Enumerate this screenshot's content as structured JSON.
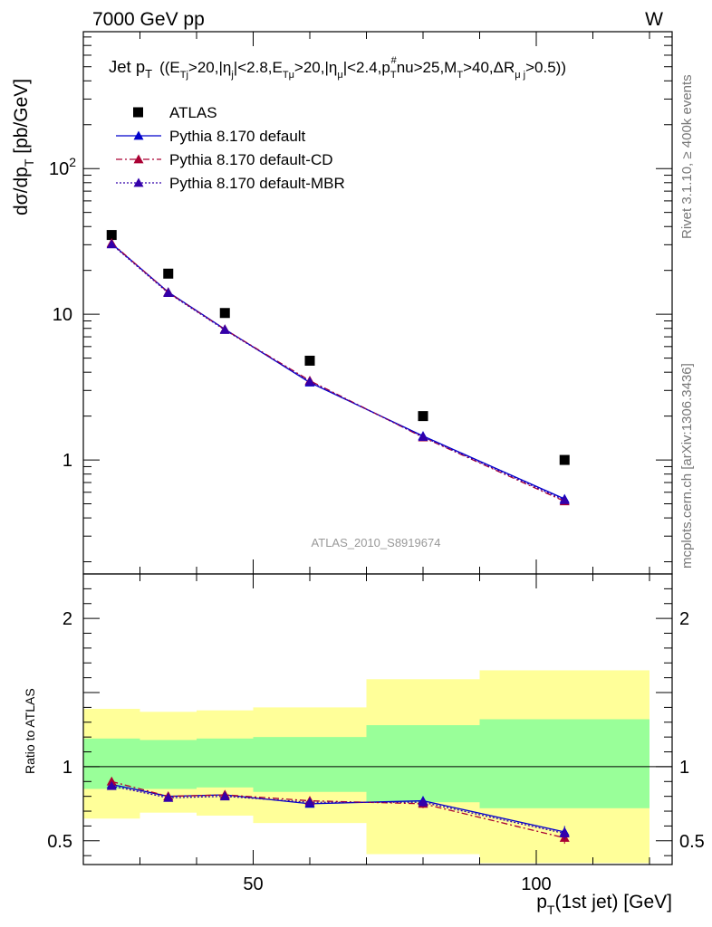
{
  "header": {
    "left": "7000 GeV pp",
    "right": "W"
  },
  "side_labels": {
    "rivet": "Rivet 3.1.10, ≥ 400k events",
    "mcplots": "mcplots.cern.ch [arXiv:1306.3436]"
  },
  "watermark": "ATLAS_2010_S8919674",
  "title_parts": {
    "main": "Jet p",
    "main_sub": "T",
    "cuts_a": "((E",
    "cuts_a_sub": "Tj",
    "cuts_b": ">20,|η",
    "cuts_b_sub": "j",
    "cuts_c": "|<2.8,E",
    "cuts_c_sub": "Tμ",
    "cuts_d": ">20,|η",
    "cuts_d_sub": "μ",
    "cuts_e": "|<2.4,p",
    "cuts_e_sub": "T",
    "cuts_e_sup": "#",
    "cuts_f": "nu>25,M",
    "cuts_f_sub": "T",
    "cuts_g": ">40,ΔR",
    "cuts_g_sub": "μ j",
    "cuts_h": ">0.5))"
  },
  "axis_labels": {
    "y_main": "dσ/dp",
    "y_main_sub": "T",
    "y_main_unit": " [pb/GeV]",
    "y_ratio": "Ratio to ATLAS",
    "x": "p",
    "x_sub": "T",
    "x_rest": "(1st jet) [GeV]"
  },
  "colors": {
    "data": "#000000",
    "default": "#0000cc",
    "cd": "#aa0033",
    "mbr": "#3300aa",
    "band_inner": "#99ff99",
    "band_outer": "#ffff99"
  },
  "chart_data": {
    "type": "line",
    "x_scale": "linear",
    "xlim": [
      20,
      124
    ],
    "main": {
      "y_scale": "log",
      "ylim": [
        0.165,
        870
      ],
      "yticks": [
        {
          "value": 1,
          "label": "1"
        },
        {
          "value": 10,
          "label": "10"
        },
        {
          "value": 100,
          "label": "10",
          "sup": "2"
        }
      ]
    },
    "ratio": {
      "y_scale": "linear",
      "ylim": [
        0.34,
        2.3
      ],
      "yticks": [
        {
          "value": 0.5,
          "label": "0.5"
        },
        {
          "value": 1,
          "label": "1"
        },
        {
          "value": 2,
          "label": "2"
        }
      ]
    },
    "xticks": [
      {
        "value": 50,
        "label": "50"
      },
      {
        "value": 100,
        "label": "100"
      }
    ],
    "bins": [
      {
        "lo": 20,
        "hi": 30,
        "x": 25
      },
      {
        "lo": 30,
        "hi": 40,
        "x": 35
      },
      {
        "lo": 40,
        "hi": 50,
        "x": 45
      },
      {
        "lo": 50,
        "hi": 70,
        "x": 60
      },
      {
        "lo": 70,
        "hi": 90,
        "x": 80
      },
      {
        "lo": 90,
        "hi": 120,
        "x": 105
      }
    ],
    "series": [
      {
        "name": "ATLAS",
        "marker": "square",
        "line": "none",
        "values": [
          35,
          19,
          10.2,
          4.8,
          2.0,
          1.0
        ]
      },
      {
        "name": "Pythia 8.170 default",
        "marker": "triangle",
        "line": "solid",
        "values": [
          30.5,
          14.2,
          7.9,
          3.4,
          1.46,
          0.54
        ],
        "ratio": [
          0.88,
          0.8,
          0.81,
          0.75,
          0.77,
          0.56
        ],
        "ratio_err": [
          0.015,
          0.01,
          0.01,
          0.015,
          0.03,
          0.04
        ]
      },
      {
        "name": "Pythia 8.170 default-CD",
        "marker": "triangle",
        "line": "dashdot",
        "values": [
          30.8,
          14.1,
          7.85,
          3.5,
          1.43,
          0.52
        ],
        "ratio": [
          0.9,
          0.8,
          0.81,
          0.77,
          0.75,
          0.52
        ],
        "ratio_err": [
          0.015,
          0.01,
          0.01,
          0.015,
          0.03,
          0.04
        ]
      },
      {
        "name": "Pythia 8.170 default-MBR",
        "marker": "triangle",
        "line": "dotted",
        "values": [
          30.2,
          14.0,
          7.8,
          3.45,
          1.44,
          0.53
        ],
        "ratio": [
          0.87,
          0.79,
          0.8,
          0.76,
          0.76,
          0.55
        ],
        "ratio_err": [
          0.015,
          0.01,
          0.01,
          0.015,
          0.03,
          0.04
        ]
      }
    ],
    "bands": {
      "inner": [
        {
          "lo": 0.85,
          "hi": 1.19
        },
        {
          "lo": 0.85,
          "hi": 1.18
        },
        {
          "lo": 0.86,
          "hi": 1.19
        },
        {
          "lo": 0.83,
          "hi": 1.2
        },
        {
          "lo": 0.76,
          "hi": 1.28
        },
        {
          "lo": 0.72,
          "hi": 1.32
        }
      ],
      "outer": [
        {
          "lo": 0.65,
          "hi": 1.39
        },
        {
          "lo": 0.69,
          "hi": 1.37
        },
        {
          "lo": 0.67,
          "hi": 1.38
        },
        {
          "lo": 0.62,
          "hi": 1.4
        },
        {
          "lo": 0.41,
          "hi": 1.59
        },
        {
          "lo": 0.35,
          "hi": 1.65
        }
      ]
    }
  }
}
